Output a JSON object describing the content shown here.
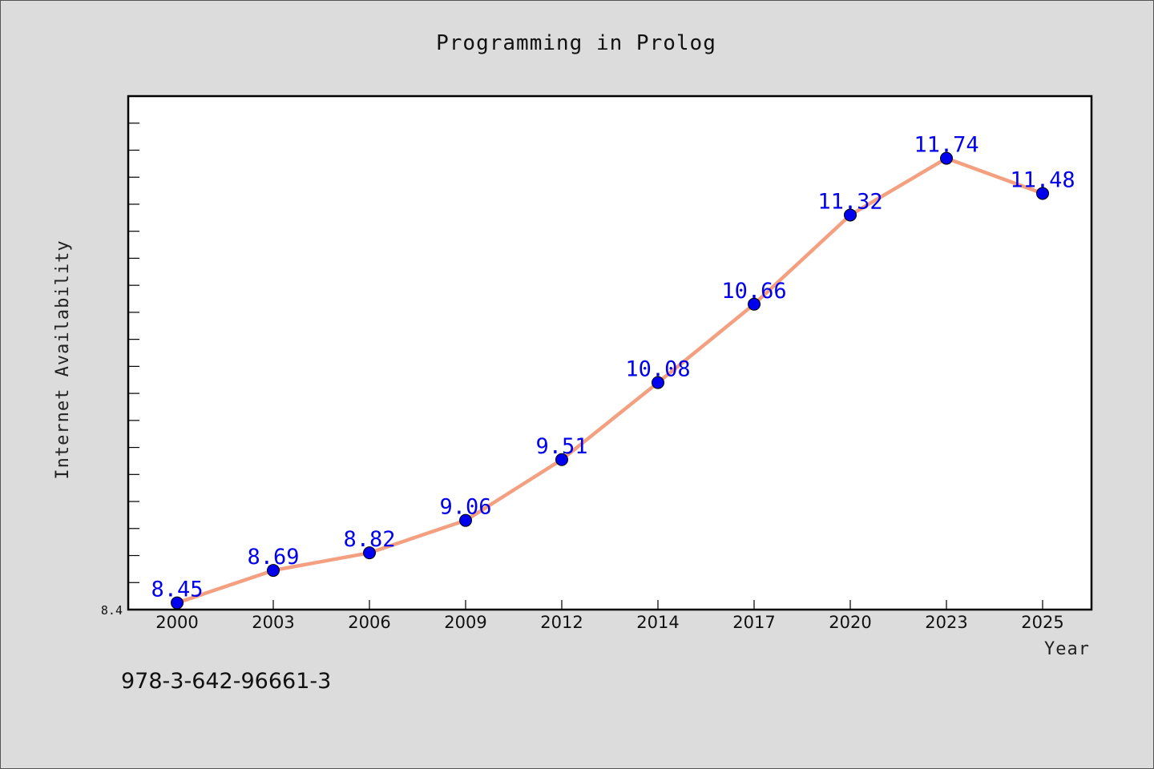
{
  "chart_data": {
    "type": "line",
    "title": "Programming in Prolog",
    "xlabel": "Year",
    "ylabel": "Internet Availability",
    "categories": [
      "2000",
      "2003",
      "2006",
      "2009",
      "2012",
      "2014",
      "2017",
      "2020",
      "2023",
      "2025"
    ],
    "series": [
      {
        "values": [
          8.45,
          8.69,
          8.82,
          9.06,
          9.51,
          10.08,
          10.66,
          11.32,
          11.74,
          11.48
        ]
      }
    ],
    "ylim": [
      8.4,
      12.2
    ],
    "y_tick_label": "8.4",
    "grid": false,
    "line_color": "#f4a080",
    "marker_color": "#0000ee",
    "label_color": "#0000ee"
  },
  "footer": {
    "isbn": "978-3-642-96661-3"
  }
}
